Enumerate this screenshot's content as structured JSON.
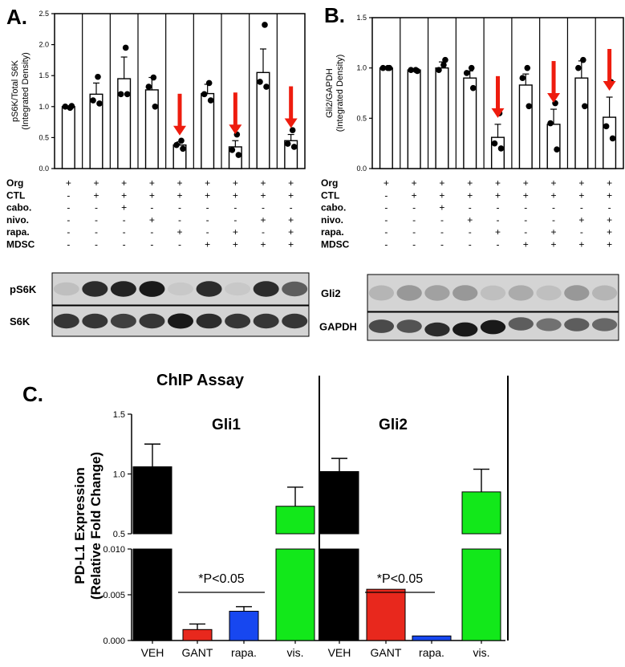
{
  "colors": {
    "red": "#e8281d",
    "black": "#000000",
    "blue": "#1747f0",
    "green": "#12e81a",
    "arrow": "#ee1c0e",
    "blot_dark": "#1c1c1c",
    "blot_bg": "#d4d4d4"
  },
  "panel_a": {
    "label": "A.",
    "row_labels": [
      "Org",
      "CTL",
      "cabo.",
      "nivo.",
      "rapa.",
      "MDSC"
    ],
    "conditions": [
      [
        "+",
        "-",
        "-",
        "-",
        "-",
        "-"
      ],
      [
        "+",
        "+",
        "-",
        "-",
        "-",
        "-"
      ],
      [
        "+",
        "+",
        "+",
        "-",
        "-",
        "-"
      ],
      [
        "+",
        "+",
        "-",
        "+",
        "-",
        "-"
      ],
      [
        "+",
        "+",
        "-",
        "-",
        "+",
        "-"
      ],
      [
        "+",
        "+",
        "-",
        "-",
        "-",
        "+"
      ],
      [
        "+",
        "+",
        "-",
        "-",
        "+",
        "+"
      ],
      [
        "+",
        "+",
        "-",
        "+",
        "-",
        "+"
      ],
      [
        "+",
        "+",
        "-",
        "+",
        "+",
        "+"
      ]
    ],
    "blots": [
      {
        "label": "pS6K",
        "intensity": [
          0.1,
          0.85,
          0.9,
          0.95,
          0.05,
          0.85,
          0.05,
          0.85,
          0.6
        ]
      },
      {
        "label": "S6K",
        "intensity": [
          0.8,
          0.8,
          0.75,
          0.8,
          0.95,
          0.85,
          0.8,
          0.8,
          0.8
        ]
      }
    ]
  },
  "panel_b": {
    "label": "B.",
    "row_labels": [
      "Org",
      "CTL",
      "cabo.",
      "nivo.",
      "rapa.",
      "MDSC"
    ],
    "conditions": [
      [
        "+",
        "-",
        "-",
        "-",
        "-",
        "-"
      ],
      [
        "+",
        "+",
        "-",
        "-",
        "-",
        "-"
      ],
      [
        "+",
        "+",
        "+",
        "-",
        "-",
        "-"
      ],
      [
        "+",
        "+",
        "-",
        "+",
        "-",
        "-"
      ],
      [
        "+",
        "+",
        "-",
        "-",
        "+",
        "-"
      ],
      [
        "+",
        "+",
        "-",
        "-",
        "-",
        "+"
      ],
      [
        "+",
        "+",
        "-",
        "-",
        "+",
        "+"
      ],
      [
        "+",
        "+",
        "-",
        "+",
        "-",
        "+"
      ],
      [
        "+",
        "+",
        "-",
        "+",
        "+",
        "+"
      ]
    ],
    "blots": [
      {
        "label": "Gli2",
        "intensity": [
          0.15,
          0.3,
          0.25,
          0.3,
          0.1,
          0.2,
          0.1,
          0.3,
          0.15
        ]
      },
      {
        "label": "GAPDH",
        "intensity": [
          0.7,
          0.65,
          0.85,
          0.95,
          0.95,
          0.6,
          0.5,
          0.6,
          0.55
        ]
      }
    ]
  },
  "panel_c": {
    "label": "C.",
    "title": "ChIP Assay",
    "sig_text": "*P<0.05"
  },
  "chart_data": [
    {
      "type": "bar",
      "title": "",
      "ylabel": "pS6K/Total S6K (Integrated Density)",
      "ylabel_lines": [
        "pS6K/Total S6K",
        "(Integrated Density)"
      ],
      "ylim": [
        0,
        2.5
      ],
      "yticks": [
        "0.0",
        "0.5",
        "1.0",
        "1.5",
        "2.0",
        "2.5"
      ],
      "values": [
        1.0,
        1.2,
        1.45,
        1.27,
        0.38,
        1.21,
        0.35,
        1.55,
        0.45
      ],
      "errors": [
        0.01,
        0.18,
        0.35,
        0.2,
        0.05,
        0.15,
        0.1,
        0.38,
        0.1
      ],
      "points": [
        [
          0.98,
          1.0,
          1.01
        ],
        [
          1.48,
          1.1,
          1.05
        ],
        [
          1.95,
          1.2,
          1.2
        ],
        [
          1.47,
          1.32,
          1.0
        ],
        [
          0.45,
          0.38,
          0.32
        ],
        [
          1.38,
          1.2,
          1.1
        ],
        [
          0.55,
          0.3,
          0.22
        ],
        [
          2.32,
          1.4,
          1.32
        ],
        [
          0.62,
          0.4,
          0.35
        ]
      ],
      "arrows_at": [
        4,
        6,
        8
      ]
    },
    {
      "type": "bar",
      "title": "",
      "ylabel": "Gli2/GAPDH (Integrated Density)",
      "ylabel_lines": [
        "Gli2/GAPDH",
        "(Integrated Density)"
      ],
      "ylim": [
        0,
        1.5
      ],
      "yticks": [
        "0.0",
        "0.5",
        "1.0",
        "1.5"
      ],
      "values": [
        1.0,
        0.98,
        1.0,
        0.9,
        0.31,
        0.83,
        0.44,
        0.9,
        0.51
      ],
      "errors": [
        0.01,
        0.01,
        0.06,
        0.07,
        0.13,
        0.11,
        0.15,
        0.17,
        0.2
      ],
      "points": [
        [
          1.0,
          1.0,
          1.0
        ],
        [
          0.98,
          0.98,
          0.97
        ],
        [
          1.03,
          0.98,
          1.08
        ],
        [
          1.0,
          0.95,
          0.8
        ],
        [
          0.55,
          0.25,
          0.2
        ],
        [
          1.0,
          0.9,
          0.62
        ],
        [
          0.65,
          0.45,
          0.19
        ],
        [
          1.08,
          1.0,
          0.62
        ],
        [
          0.86,
          0.42,
          0.3
        ]
      ],
      "arrows_at": [
        4,
        6,
        8
      ]
    },
    {
      "type": "bar",
      "title": "ChIP Assay",
      "ylabel": "PD-L1 Expression (Relative Fold Change)",
      "ylabel_lines": [
        "PD-L1 Expression",
        "(Relative Fold Change)"
      ],
      "y_broken_axis": true,
      "ylim_lower": [
        0,
        0.01
      ],
      "ylim_upper": [
        0.5,
        1.5
      ],
      "yticks_lower": [
        "0.000",
        "0.005",
        "0.010"
      ],
      "yticks_upper": [
        "0.5",
        "1.0",
        "1.5"
      ],
      "categories": [
        "VEH",
        "GANT",
        "rapa.",
        "vis.",
        "VEH",
        "GANT",
        "rapa.",
        "vis."
      ],
      "groups": [
        {
          "name": "Gli1",
          "values": [
            1.06,
            0.0012,
            0.0032,
            0.73
          ],
          "errors": [
            0.19,
            0.0006,
            0.0005,
            0.16
          ]
        },
        {
          "name": "Gli2",
          "values": [
            1.02,
            0.0056,
            0.0005,
            0.85
          ],
          "errors": [
            0.11,
            0.0,
            0.0,
            0.19
          ]
        }
      ]
    }
  ]
}
